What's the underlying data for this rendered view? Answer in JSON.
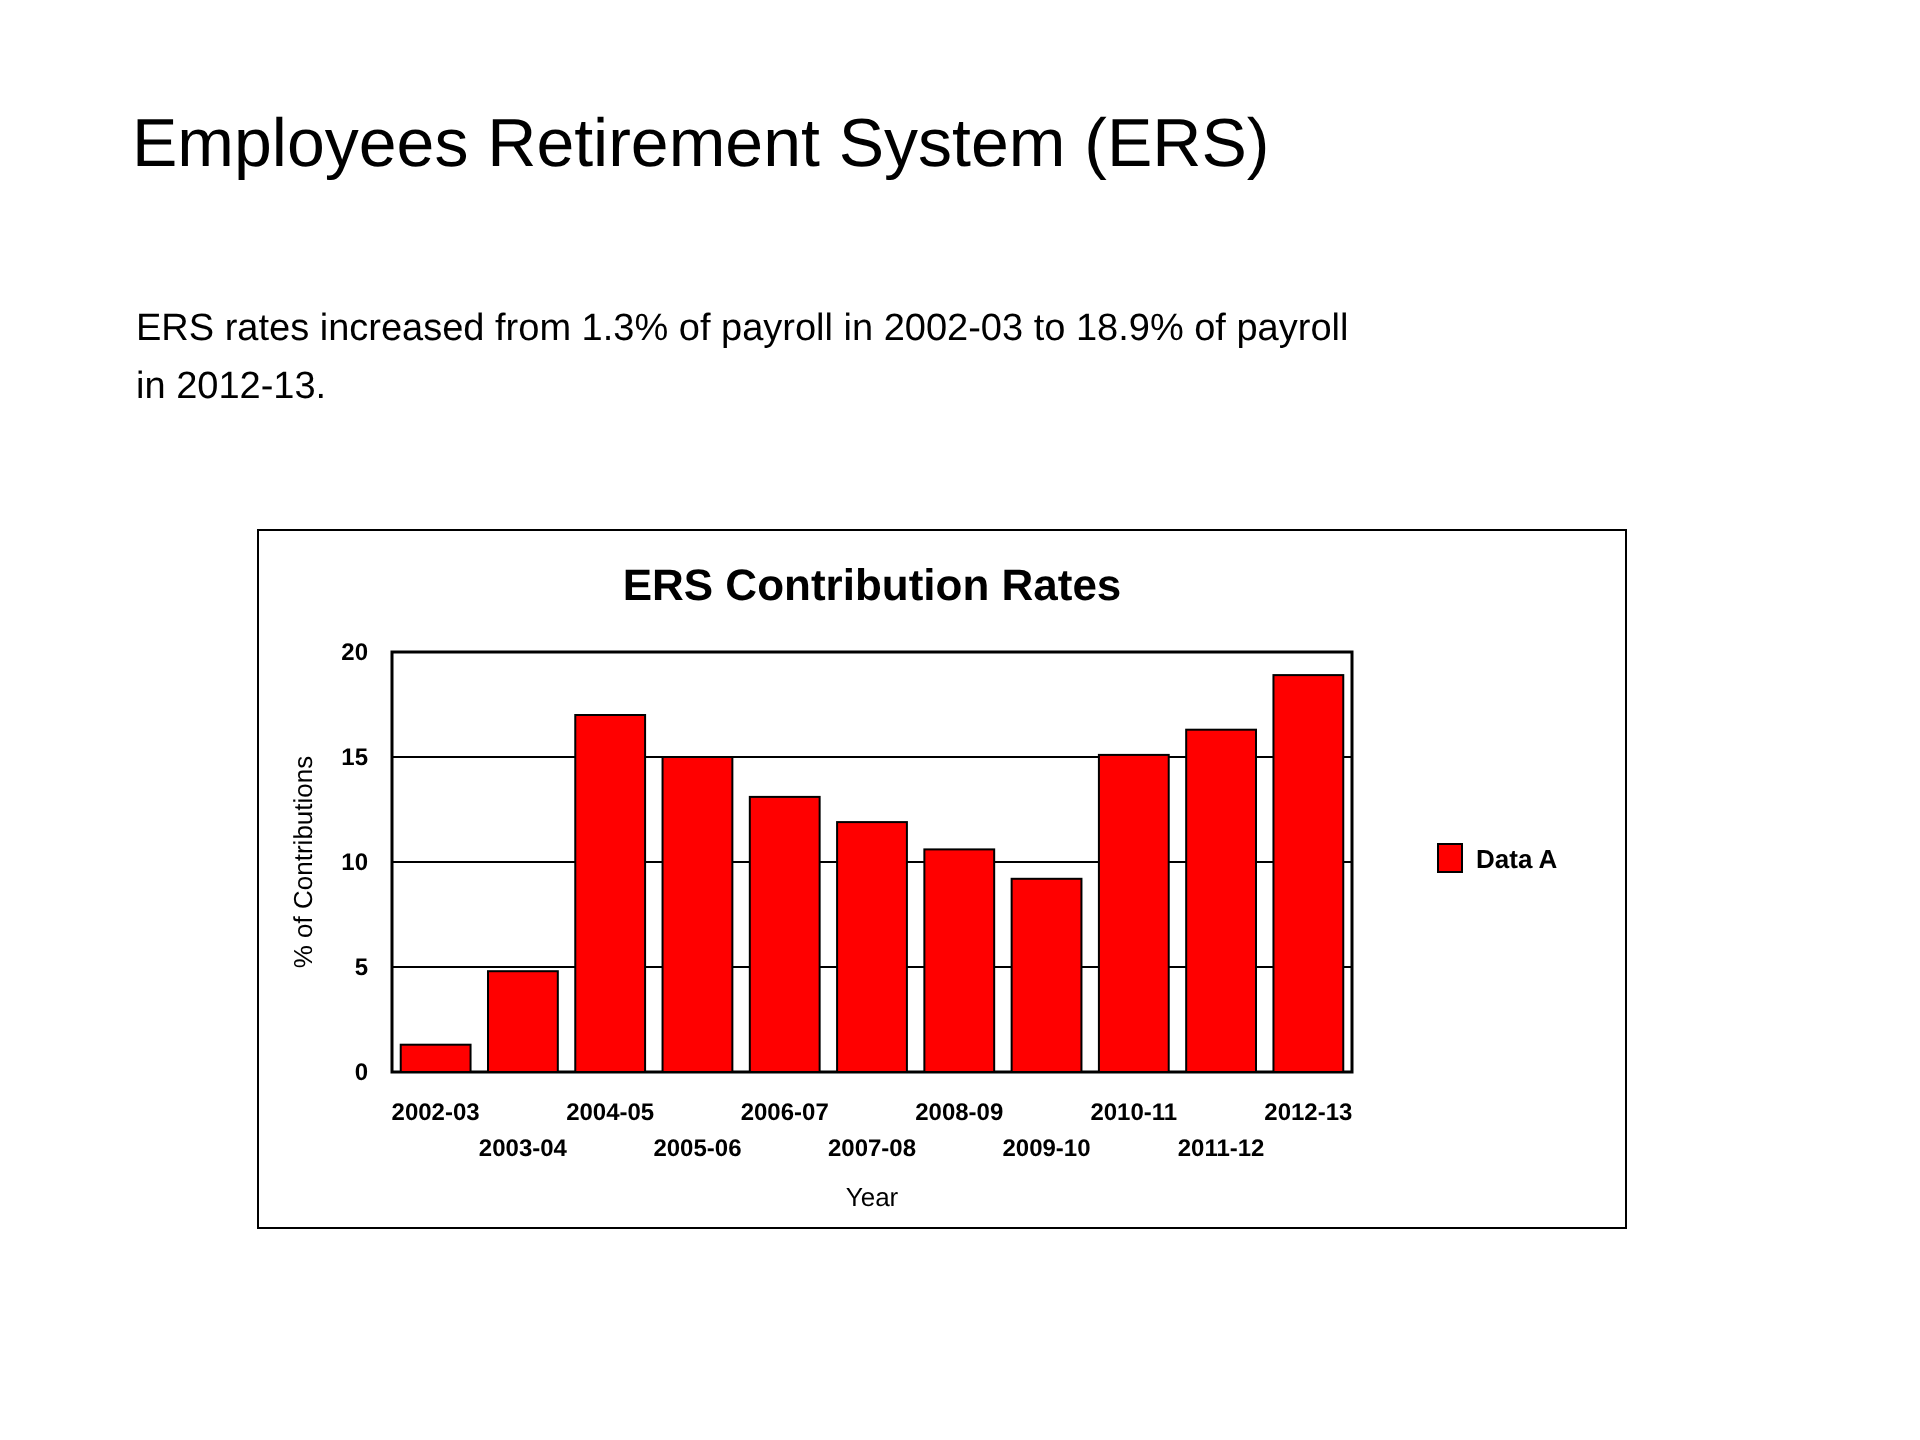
{
  "chart_data": {
    "type": "bar",
    "title": "ERS Contribution Rates",
    "xlabel": "Year",
    "ylabel": "% of Contributions",
    "annotations": [
      "Employees Retirement System (ERS)",
      "ERS rates increased from 1.3% of payroll in 2002-03 to 18.9% of payroll in 2012-13."
    ],
    "categories": [
      "2002-03",
      "2003-04",
      "2004-05",
      "2005-06",
      "2006-07",
      "2007-08",
      "2008-09",
      "2009-10",
      "2010-11",
      "2011-12",
      "2012-13"
    ],
    "series": [
      {
        "name": "Data A",
        "color": "#ff0000",
        "values": [
          1.3,
          4.8,
          17.0,
          15.0,
          13.1,
          11.9,
          10.6,
          9.2,
          15.1,
          16.3,
          18.9
        ]
      }
    ],
    "ylim": [
      0,
      20
    ],
    "yticks": [
      0,
      5,
      10,
      15,
      20
    ],
    "grid": "y",
    "legend": "right"
  }
}
